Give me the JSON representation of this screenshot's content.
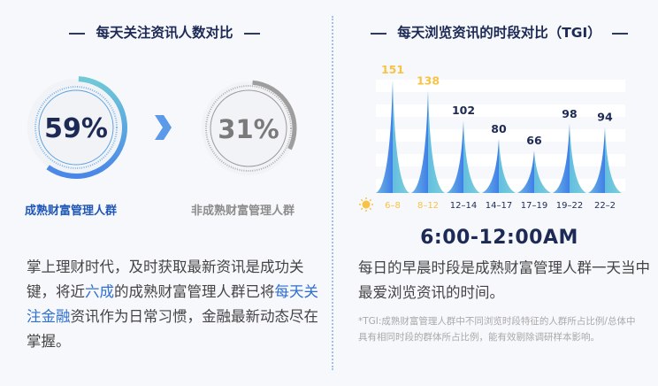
{
  "left": {
    "title": "每天关注资讯人数对比",
    "mature": {
      "percent_label": "59%",
      "value": 59,
      "label": "成熟财富管理人群",
      "color": "#1f57b8"
    },
    "non_mature": {
      "percent_label": "31%",
      "value": 31,
      "label": "非成熟财富管理人群",
      "color": "#8c8c8c"
    },
    "paragraph": {
      "p1": "掌上理财时代，及时获取最新资讯是成功关键，将近",
      "h1": "六成",
      "p2": "的成熟财富管理人群已将",
      "h2": "每天关注金融",
      "p3": "资讯作为日常习惯，金融最新动态尽在掌握。"
    }
  },
  "right": {
    "title": "每天浏览资讯的时段对比（TGI）",
    "highlight": "6:00-12:00AM",
    "paragraph": "每日的早晨时段是成熟财富管理人群一天当中最爱浏览资讯的时间。",
    "note": "*TGI:成熟财富管理人群中不同浏览时段特征的人群所占比例/总体中具有相同时段的群体所占比例，能有效剔除调研样本影响。",
    "icons": {
      "start": "sun-icon",
      "end": "moon-icon"
    }
  },
  "chart_data": {
    "type": "bar",
    "title": "每天浏览资讯的时段对比（TGI）",
    "categories": [
      "6–8",
      "8–12",
      "12–14",
      "14–17",
      "17–19",
      "19–22",
      "22–2"
    ],
    "values": [
      151,
      138,
      102,
      80,
      66,
      98,
      94
    ],
    "highlighted": [
      true,
      true,
      false,
      false,
      false,
      false,
      false
    ],
    "colors": {
      "highlight": "#f7c344",
      "normal": "#1c2a55",
      "bar_start": "#4a86e8",
      "bar_end": "#6fcad6"
    },
    "grid": true
  }
}
